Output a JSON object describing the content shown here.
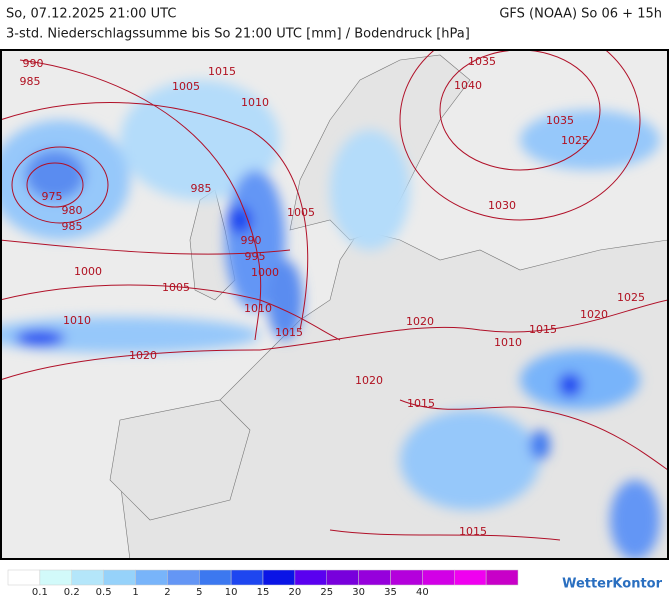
{
  "header": {
    "left": "So, 07.12.2025 21:00 UTC",
    "right": "GFS (NOAA) So 06 + 15h",
    "subtitle": "3-std. Niederschlagssumme bis So 21:00 UTC [mm] / Bodendruck [hPa]"
  },
  "isobar_labels": [
    990,
    985,
    1015,
    1005,
    1010,
    1035,
    1040,
    1035,
    1025,
    975,
    980,
    985,
    985,
    1005,
    990,
    995,
    1000,
    1000,
    1030,
    1005,
    1010,
    1010,
    1015,
    1020,
    1015,
    1020,
    1025,
    1010,
    1020,
    1020,
    1015,
    1015
  ],
  "legend": {
    "colors": [
      "#ffffff",
      "#d2fafa",
      "#b4e6fa",
      "#96d2fa",
      "#78b4fa",
      "#6496f5",
      "#3c78f0",
      "#1e46f0",
      "#0a14e6",
      "#5a00f0",
      "#7800dc",
      "#9600dc",
      "#b400dc",
      "#d200e6",
      "#f000f0",
      "#c800c8"
    ],
    "labels": [
      0.1,
      0.2,
      0.5,
      1,
      2,
      5,
      10,
      15,
      20,
      25,
      30,
      35,
      40
    ]
  },
  "logo": "WetterKontor"
}
